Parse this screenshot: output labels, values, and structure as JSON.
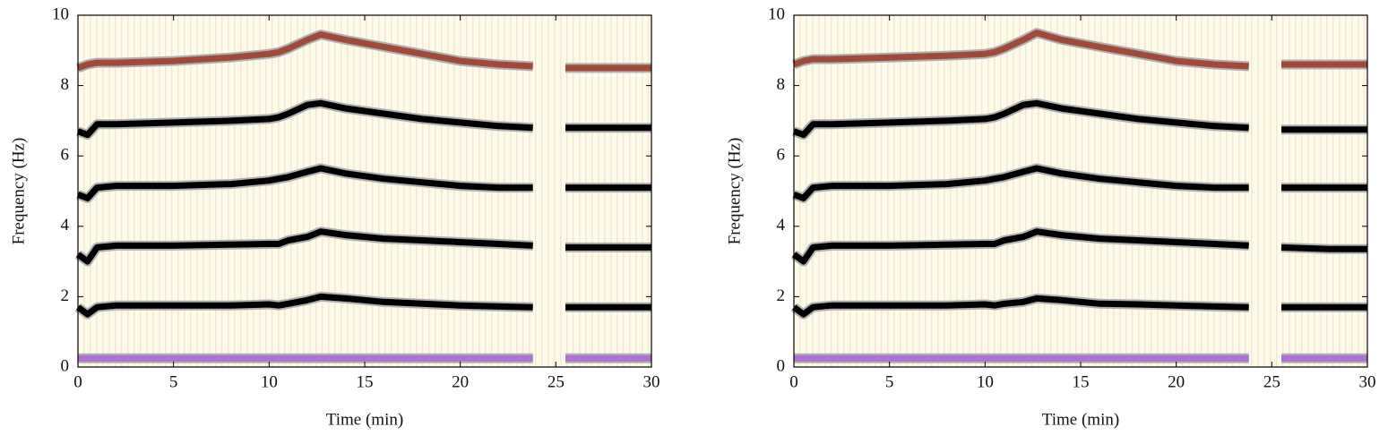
{
  "chart_data": [
    {
      "type": "line",
      "x_label": "Time (min)",
      "y_label": "Frequency (Hz)",
      "x": [
        0,
        0.5,
        1,
        2,
        5,
        8,
        10,
        10.5,
        11,
        12,
        12.7,
        14,
        16,
        18,
        20,
        22,
        23.8,
        24.8,
        25.5,
        28,
        30
      ],
      "xlim": [
        0,
        30
      ],
      "ylim": [
        0,
        10
      ],
      "xticks": [
        0,
        5,
        10,
        15,
        20,
        25,
        30
      ],
      "yticks": [
        0,
        2,
        4,
        6,
        8,
        10
      ],
      "series": [
        {
          "color": "#b070d8",
          "values": [
            0.25,
            0.25,
            0.25,
            0.25,
            0.25,
            0.25,
            0.25,
            0.25,
            0.25,
            0.25,
            0.25,
            0.25,
            0.25,
            0.25,
            0.25,
            0.25,
            0.25,
            null,
            0.25,
            0.25,
            0.25
          ]
        },
        {
          "color": "#000000",
          "values": [
            1.7,
            1.5,
            1.7,
            1.75,
            1.75,
            1.75,
            1.78,
            1.75,
            1.8,
            1.9,
            2.0,
            1.95,
            1.85,
            1.8,
            1.75,
            1.72,
            1.7,
            null,
            1.7,
            1.7,
            1.7
          ]
        },
        {
          "color": "#000000",
          "values": [
            3.2,
            3.0,
            3.4,
            3.45,
            3.45,
            3.48,
            3.5,
            3.5,
            3.6,
            3.7,
            3.85,
            3.75,
            3.65,
            3.6,
            3.55,
            3.5,
            3.45,
            null,
            3.4,
            3.4,
            3.4
          ]
        },
        {
          "color": "#000000",
          "values": [
            4.9,
            4.8,
            5.1,
            5.15,
            5.15,
            5.2,
            5.3,
            5.35,
            5.4,
            5.55,
            5.65,
            5.5,
            5.35,
            5.25,
            5.15,
            5.1,
            5.1,
            null,
            5.1,
            5.1,
            5.1
          ]
        },
        {
          "color": "#000000",
          "values": [
            6.7,
            6.6,
            6.9,
            6.9,
            6.95,
            7.0,
            7.05,
            7.1,
            7.2,
            7.45,
            7.5,
            7.35,
            7.2,
            7.05,
            6.95,
            6.85,
            6.8,
            null,
            6.8,
            6.8,
            6.8
          ]
        },
        {
          "color": "#a04a3a",
          "values": [
            8.5,
            8.6,
            8.65,
            8.65,
            8.7,
            8.8,
            8.9,
            8.95,
            9.05,
            9.3,
            9.45,
            9.3,
            9.1,
            8.9,
            8.7,
            8.6,
            8.55,
            null,
            8.5,
            8.5,
            8.5
          ]
        }
      ]
    },
    {
      "type": "line",
      "x_label": "Time (min)",
      "y_label": "Frequency (Hz)",
      "x": [
        0,
        0.5,
        1,
        2,
        5,
        8,
        10,
        10.5,
        11,
        12,
        12.7,
        14,
        16,
        18,
        20,
        22,
        23.8,
        24.8,
        25.5,
        28,
        30
      ],
      "xlim": [
        0,
        30
      ],
      "ylim": [
        0,
        10
      ],
      "xticks": [
        0,
        5,
        10,
        15,
        20,
        25,
        30
      ],
      "yticks": [
        0,
        2,
        4,
        6,
        8,
        10
      ],
      "series": [
        {
          "color": "#b070d8",
          "values": [
            0.25,
            0.25,
            0.25,
            0.25,
            0.25,
            0.25,
            0.25,
            0.25,
            0.25,
            0.25,
            0.25,
            0.25,
            0.25,
            0.25,
            0.25,
            0.25,
            0.25,
            null,
            0.25,
            0.25,
            0.25
          ]
        },
        {
          "color": "#000000",
          "values": [
            1.7,
            1.5,
            1.7,
            1.75,
            1.75,
            1.75,
            1.78,
            1.75,
            1.8,
            1.85,
            1.95,
            1.9,
            1.8,
            1.78,
            1.75,
            1.72,
            1.7,
            null,
            1.7,
            1.7,
            1.7
          ]
        },
        {
          "color": "#000000",
          "values": [
            3.2,
            3.0,
            3.4,
            3.45,
            3.45,
            3.48,
            3.5,
            3.5,
            3.6,
            3.7,
            3.85,
            3.75,
            3.65,
            3.6,
            3.55,
            3.5,
            3.45,
            null,
            3.4,
            3.35,
            3.35
          ]
        },
        {
          "color": "#000000",
          "values": [
            4.9,
            4.8,
            5.1,
            5.15,
            5.15,
            5.2,
            5.3,
            5.35,
            5.4,
            5.55,
            5.65,
            5.5,
            5.35,
            5.25,
            5.15,
            5.1,
            5.1,
            null,
            5.1,
            5.1,
            5.1
          ]
        },
        {
          "color": "#000000",
          "values": [
            6.7,
            6.6,
            6.9,
            6.9,
            6.95,
            7.0,
            7.05,
            7.1,
            7.2,
            7.45,
            7.5,
            7.35,
            7.2,
            7.05,
            6.95,
            6.85,
            6.8,
            null,
            6.75,
            6.75,
            6.75
          ]
        },
        {
          "color": "#a04a3a",
          "values": [
            8.6,
            8.7,
            8.75,
            8.75,
            8.8,
            8.85,
            8.9,
            8.95,
            9.05,
            9.3,
            9.5,
            9.3,
            9.1,
            8.9,
            8.7,
            8.6,
            8.55,
            null,
            8.6,
            8.6,
            8.6
          ]
        }
      ]
    }
  ]
}
